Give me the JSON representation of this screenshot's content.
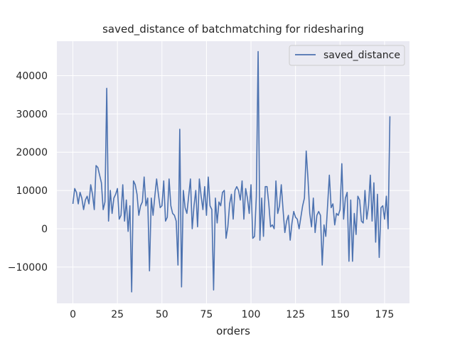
{
  "chart_data": {
    "type": "line",
    "title": "saved_distance of batchmatching for ridesharing",
    "xlabel": "orders",
    "ylabel": "",
    "xlim": [
      -9,
      189
    ],
    "ylim": [
      -19500,
      49000
    ],
    "x_ticks": [
      0,
      25,
      50,
      75,
      100,
      125,
      150,
      175
    ],
    "x_tick_labels": [
      "0",
      "25",
      "50",
      "75",
      "100",
      "125",
      "150",
      "175"
    ],
    "y_ticks": [
      -10000,
      0,
      10000,
      20000,
      30000,
      40000
    ],
    "y_tick_labels": [
      "−10000",
      "0",
      "10000",
      "20000",
      "30000",
      "40000"
    ],
    "grid": true,
    "legend_position": "top-right",
    "series": [
      {
        "name": "saved_distance",
        "color": "#4c72b0",
        "x_start": 0,
        "x_step": 1,
        "values": [
          6500,
          10500,
          9500,
          6500,
          9500,
          8000,
          5000,
          7500,
          8500,
          6500,
          11500,
          9000,
          5000,
          16500,
          16000,
          14000,
          12000,
          5000,
          7000,
          36700,
          2000,
          10000,
          4000,
          8000,
          9000,
          10500,
          2500,
          3500,
          11500,
          2000,
          7500,
          -700,
          6000,
          -16500,
          12500,
          11500,
          9000,
          3500,
          6000,
          7000,
          13500,
          6000,
          8000,
          -11000,
          8000,
          3500,
          8500,
          13000,
          9000,
          5500,
          6000,
          12500,
          2000,
          3000,
          13000,
          6000,
          4000,
          3500,
          2000,
          -9500,
          26000,
          -15200,
          10000,
          5500,
          4000,
          8500,
          13000,
          0,
          6000,
          10000,
          500,
          13000,
          8500,
          5000,
          11000,
          3500,
          13500,
          6000,
          5000,
          -16000,
          8000,
          1500,
          7000,
          6000,
          9500,
          10000,
          -2500,
          500,
          6500,
          9000,
          2500,
          10000,
          11000,
          10000,
          7500,
          12500,
          2500,
          10500,
          8000,
          4000,
          11500,
          -2500,
          -2000,
          8500,
          46300,
          -3000,
          8000,
          -2000,
          11000,
          11000,
          6500,
          500,
          1000,
          0,
          12500,
          4000,
          6000,
          11500,
          5000,
          -1000,
          2000,
          3500,
          -3000,
          1500,
          4500,
          3000,
          2500,
          0,
          3000,
          6000,
          8000,
          20300,
          13000,
          4000,
          500,
          8000,
          -1000,
          3500,
          4500,
          3500,
          -9500,
          1000,
          -2000,
          6000,
          14000,
          5500,
          6500,
          1000,
          4000,
          3500,
          5000,
          17000,
          2500,
          8000,
          9500,
          -8500,
          7500,
          -8500,
          4000,
          -1500,
          8500,
          7500,
          2000,
          1500,
          10000,
          2500,
          6000,
          14000,
          2000,
          12000,
          -3500,
          9000,
          -7500,
          5500,
          6000,
          2500,
          8500,
          0,
          29400
        ]
      }
    ]
  }
}
